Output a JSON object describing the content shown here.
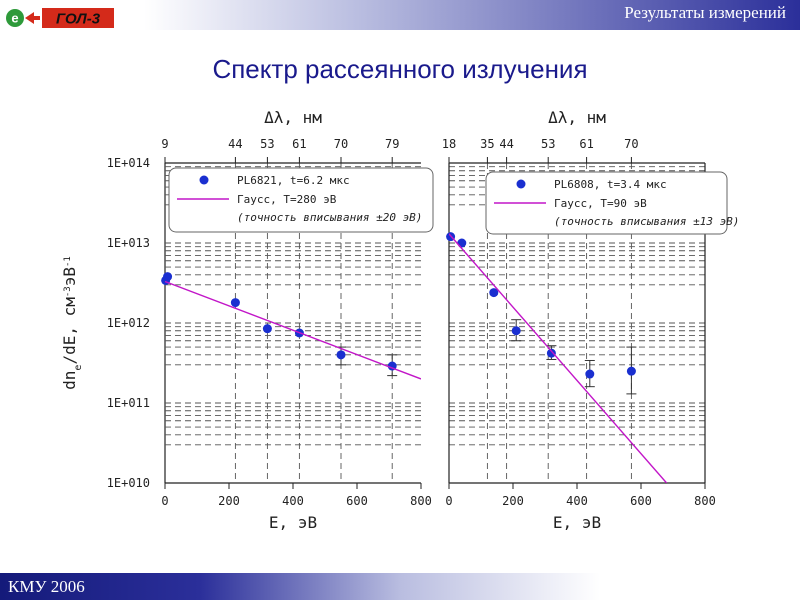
{
  "header": {
    "title": "Результаты измерений"
  },
  "logo": {
    "badge": "e",
    "text": "ГОЛ-3",
    "colors": {
      "badge": "#2e9a3a",
      "arrow": "#d42a1a",
      "box": "#d42a1a"
    }
  },
  "slide": {
    "title": "Спектр рассеянного излучения"
  },
  "footer": {
    "text": "КМУ 2006"
  },
  "colors": {
    "points": "#1a2fd0",
    "fit": "#c216c8",
    "axis": "#222222"
  },
  "chart_data": {
    "type": "scatter",
    "y_axis": {
      "label": "dn_e/dE, см⁻³эВ⁻¹",
      "scale": "log",
      "ylim": [
        10000000000.0,
        100000000000000.0
      ],
      "ticks": [
        10000000000.0,
        100000000000.0,
        1000000000000.0,
        10000000000000.0,
        100000000000000.0
      ],
      "tick_labels": [
        "1E+010",
        "1E+011",
        "1E+012",
        "1E+013",
        "1E+014"
      ],
      "grid": true
    },
    "panels": [
      {
        "x_axis": {
          "label": "E, эВ",
          "xlim": [
            0,
            800
          ],
          "ticks": [
            0,
            200,
            400,
            600,
            800
          ],
          "tick_labels": [
            "0",
            "200",
            "400",
            "600",
            "800"
          ]
        },
        "top_axis": {
          "label": "Δλ, нм",
          "tick_energies": [
            0,
            220,
            320,
            420,
            550,
            710
          ],
          "tick_labels": [
            "9",
            "44",
            "53",
            "61",
            "70",
            "79"
          ]
        },
        "legend": {
          "entries": [
            {
              "marker": "point",
              "label": "PL6821, t=6.2 мкс"
            },
            {
              "marker": "line",
              "label": "Гаусс, T=280 эВ"
            }
          ],
          "note": "(точность вписывания ±20 эВ)"
        },
        "series": [
          {
            "name": "PL6821, t=6.2 мкс",
            "type": "scatter",
            "points": [
              {
                "x": 2,
                "y": 3400000000000.0
              },
              {
                "x": 8,
                "y": 3800000000000.0
              },
              {
                "x": 220,
                "y": 1800000000000.0
              },
              {
                "x": 320,
                "y": 850000000000.0
              },
              {
                "x": 420,
                "y": 750000000000.0
              },
              {
                "x": 550,
                "y": 400000000000.0,
                "err": [
                  300000000000.0,
                  500000000000.0
                ]
              },
              {
                "x": 710,
                "y": 290000000000.0,
                "err": [
                  220000000000.0,
                  400000000000.0
                ]
              }
            ]
          },
          {
            "name": "Гаусс, T=280 эВ",
            "type": "line",
            "points": [
              {
                "x": 0,
                "y": 3300000000000.0
              },
              {
                "x": 800,
                "y": 200000000000.0
              }
            ]
          }
        ]
      },
      {
        "x_axis": {
          "label": "E, эВ",
          "xlim": [
            0,
            800
          ],
          "ticks": [
            0,
            200,
            400,
            600,
            800
          ],
          "tick_labels": [
            "0",
            "200",
            "400",
            "600",
            "800"
          ]
        },
        "top_axis": {
          "label": "Δλ, нм",
          "tick_energies": [
            0,
            120,
            180,
            310,
            430,
            570
          ],
          "tick_labels": [
            "18",
            "35",
            "44",
            "53",
            "61",
            "70"
          ]
        },
        "legend": {
          "entries": [
            {
              "marker": "point",
              "label": "PL6808, t=3.4 мкс"
            },
            {
              "marker": "line",
              "label": "Гаусс, T=90 эВ"
            }
          ],
          "note": "(точность вписывания ±13 эВ)"
        },
        "series": [
          {
            "name": "PL6808, t=3.4 мкс",
            "type": "scatter",
            "points": [
              {
                "x": 5,
                "y": 12000000000000.0
              },
              {
                "x": 40,
                "y": 10000000000000.0
              },
              {
                "x": 140,
                "y": 2400000000000.0
              },
              {
                "x": 210,
                "y": 800000000000.0,
                "err": [
                  600000000000.0,
                  1100000000000.0
                ]
              },
              {
                "x": 320,
                "y": 420000000000.0,
                "err": [
                  350000000000.0,
                  520000000000.0
                ]
              },
              {
                "x": 440,
                "y": 230000000000.0,
                "err": [
                  160000000000.0,
                  340000000000.0
                ]
              },
              {
                "x": 570,
                "y": 250000000000.0,
                "err": [
                  130000000000.0,
                  500000000000.0
                ]
              }
            ]
          },
          {
            "name": "Гаусс, T=90 эВ",
            "type": "line",
            "points": [
              {
                "x": 0,
                "y": 13000000000000.0
              },
              {
                "x": 680,
                "y": 10000000000.0
              }
            ]
          }
        ]
      }
    ]
  }
}
